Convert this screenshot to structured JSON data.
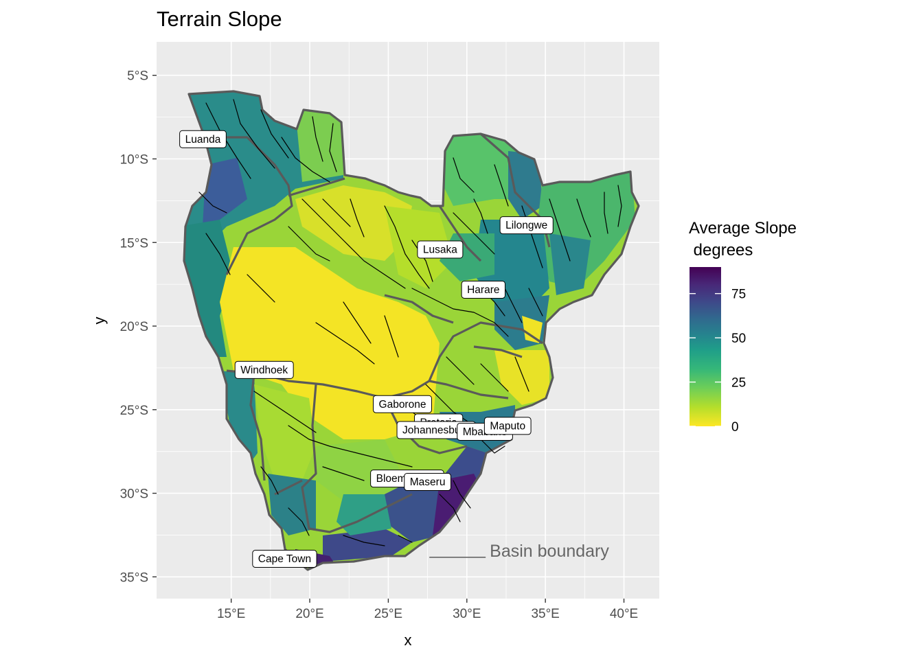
{
  "title": "Terrain Slope",
  "axes": {
    "x_label": "x",
    "y_label": "y",
    "x_ticks": [
      {
        "value": 15,
        "label": "15°E"
      },
      {
        "value": 20,
        "label": "20°E"
      },
      {
        "value": 25,
        "label": "25°E"
      },
      {
        "value": 30,
        "label": "30°E"
      },
      {
        "value": 35,
        "label": "35°E"
      },
      {
        "value": 40,
        "label": "40°E"
      }
    ],
    "y_ticks": [
      {
        "value": -5,
        "label": "5°S"
      },
      {
        "value": -10,
        "label": "10°S"
      },
      {
        "value": -15,
        "label": "15°S"
      },
      {
        "value": -20,
        "label": "20°S"
      },
      {
        "value": -25,
        "label": "25°S"
      },
      {
        "value": -30,
        "label": "30°S"
      },
      {
        "value": -35,
        "label": "35°S"
      }
    ],
    "x_range": [
      10.25,
      42.25
    ],
    "y_range": [
      -36.3,
      -3.0
    ]
  },
  "cities": [
    {
      "name": "Luanda",
      "lon": 13.2,
      "lat": -8.8
    },
    {
      "name": "Lilongwe",
      "lon": 33.8,
      "lat": -13.95
    },
    {
      "name": "Lusaka",
      "lon": 28.3,
      "lat": -15.4
    },
    {
      "name": "Harare",
      "lon": 31.05,
      "lat": -17.8
    },
    {
      "name": "Windhoek",
      "lon": 17.1,
      "lat": -22.6
    },
    {
      "name": "Gaborone",
      "lon": 25.9,
      "lat": -24.65
    },
    {
      "name": "Pretoria",
      "lon": 28.2,
      "lat": -25.75
    },
    {
      "name": "Johannesburg",
      "lon": 28.05,
      "lat": -26.2
    },
    {
      "name": "Mbabane",
      "lon": 31.15,
      "lat": -26.3
    },
    {
      "name": "Maputo",
      "lon": 32.6,
      "lat": -25.95
    },
    {
      "name": "Bloemfontein",
      "lon": 26.2,
      "lat": -29.1
    },
    {
      "name": "Maseru",
      "lon": 27.5,
      "lat": -29.3
    },
    {
      "name": "Cape Town",
      "lon": 18.4,
      "lat": -33.9
    }
  ],
  "legend": {
    "title_line1": "Average Slope",
    "title_line2": " degrees",
    "range": [
      0,
      90
    ],
    "ticks": [
      {
        "value": 0,
        "label": "0"
      },
      {
        "value": 25,
        "label": "25"
      },
      {
        "value": 50,
        "label": "50"
      },
      {
        "value": 75,
        "label": "75"
      }
    ],
    "colors": [
      "#fde725",
      "#b5de2b",
      "#6ece58",
      "#35b779",
      "#1f9e89",
      "#26828e",
      "#31688e",
      "#3e4989",
      "#482878",
      "#440154"
    ]
  },
  "annotation": {
    "text": "Basin boundary",
    "lon": 27.7,
    "lat": -33.5
  },
  "colors": {
    "panel": "#ebebeb",
    "grid": "#ffffff",
    "boundary": "#5a5a5a",
    "rivers": "#000000"
  }
}
